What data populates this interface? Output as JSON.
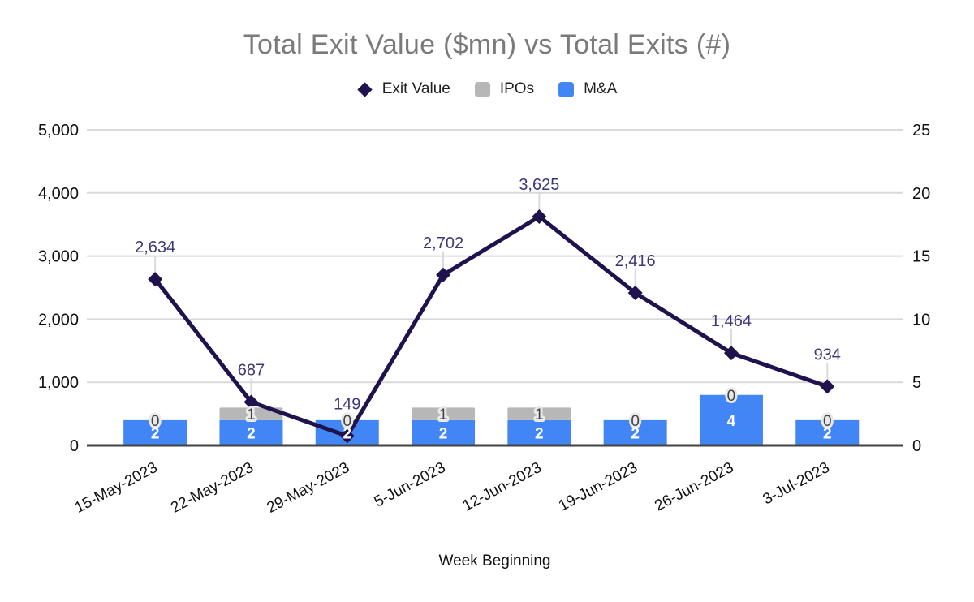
{
  "chart_data": {
    "type": "combo",
    "title": "Total Exit Value ($mn) vs Total Exits (#)",
    "xlabel": "Week Beginning",
    "categories": [
      "15-May-2023",
      "22-May-2023",
      "29-May-2023",
      "5-Jun-2023",
      "12-Jun-2023",
      "19-Jun-2023",
      "26-Jun-2023",
      "3-Jul-2023"
    ],
    "series": [
      {
        "name": "Exit Value",
        "type": "line",
        "axis": "left",
        "color": "#20124d",
        "values": [
          2634,
          687,
          149,
          2702,
          3625,
          2416,
          1464,
          934
        ],
        "labels": [
          "2,634",
          "687",
          "149",
          "2,702",
          "3,625",
          "2,416",
          "1,464",
          "934"
        ]
      },
      {
        "name": "IPOs",
        "type": "bar",
        "axis": "right",
        "color": "#b7b7b7",
        "values": [
          0,
          1,
          0,
          1,
          1,
          0,
          0,
          0
        ]
      },
      {
        "name": "M&A",
        "type": "bar",
        "axis": "right",
        "color": "#4285f4",
        "values": [
          2,
          2,
          2,
          2,
          2,
          2,
          4,
          2
        ]
      }
    ],
    "bars_stacked": true,
    "grid": true,
    "legend_position": "top",
    "left_axis": {
      "min": 0,
      "max": 5000,
      "ticks": [
        "0",
        "1,000",
        "2,000",
        "3,000",
        "4,000",
        "5,000"
      ]
    },
    "right_axis": {
      "min": 0,
      "max": 25,
      "ticks": [
        "0",
        "5",
        "10",
        "15",
        "20",
        "25"
      ]
    }
  },
  "legend": {
    "items": [
      {
        "label": "Exit Value",
        "marker": "diamond",
        "color": "#20124d"
      },
      {
        "label": "IPOs",
        "marker": "square",
        "color": "#b7b7b7"
      },
      {
        "label": "M&A",
        "marker": "square",
        "color": "#4285f4"
      }
    ]
  },
  "colors": {
    "title_text": "#7a7a7a",
    "legend_text": "#212121",
    "axis_text": "#111111",
    "gridline": "#d9d9d9",
    "axis_line": "#424242",
    "line_series": "#20124d",
    "line_data_label": "#3d3878",
    "leader_line": "#dadada",
    "bar_label_dark": "#424242",
    "bar_label_halo": "#e9e9e9",
    "bar_label_white": "#ffffff"
  }
}
